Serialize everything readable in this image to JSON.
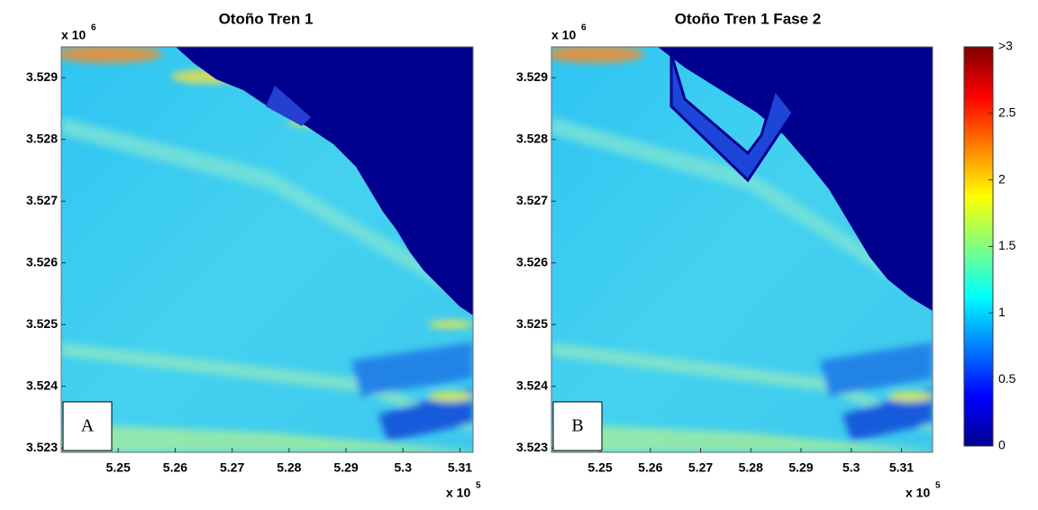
{
  "chart_data": [
    {
      "type": "heatmap",
      "title": "Otoño Tren 1",
      "panel_label": "A",
      "y_multiplier": "x 10",
      "y_multiplier_power": "6",
      "x_multiplier": "x 10",
      "x_multiplier_power": "5",
      "xlim": [
        5.24,
        5.3123
      ],
      "xticks": [
        5.25,
        5.26,
        5.27,
        5.28,
        5.29,
        5.3,
        5.31
      ],
      "ylim": [
        3.52293,
        3.5295
      ],
      "yticks": [
        3.523,
        3.524,
        3.525,
        3.526,
        3.527,
        3.528,
        3.529
      ]
    },
    {
      "type": "heatmap",
      "title": "Otoño Tren 1 Fase 2",
      "panel_label": "B",
      "y_multiplier": "x 10",
      "y_multiplier_power": "6",
      "x_multiplier": "x 10",
      "x_multiplier_power": "5",
      "xlim": [
        5.2403,
        5.3162
      ],
      "xticks": [
        5.25,
        5.26,
        5.27,
        5.28,
        5.29,
        5.3,
        5.31
      ],
      "ylim": [
        3.52293,
        3.5295
      ],
      "yticks": [
        3.523,
        3.524,
        3.525,
        3.526,
        3.527,
        3.528,
        3.529
      ]
    }
  ],
  "colorbar": {
    "clim": [
      0,
      3
    ],
    "ticks": [
      0,
      0.5,
      1,
      1.5,
      2,
      2.5,
      {
        "value": 3,
        "label": ">3"
      }
    ]
  }
}
